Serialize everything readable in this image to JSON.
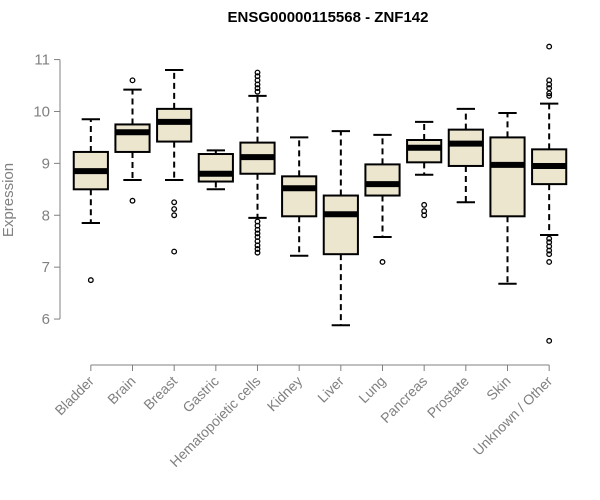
{
  "chart_data": {
    "type": "boxplot",
    "title": "ENSG00000115568 - ZNF142",
    "xlabel": "",
    "ylabel": "Expression",
    "ylim": [
      5.5,
      11.3
    ],
    "yticks": [
      6,
      7,
      8,
      9,
      10,
      11
    ],
    "colors": {
      "box_fill": "#ede6cf",
      "stroke": "#000000",
      "axis": "#808080",
      "text": "#808080"
    },
    "categories": [
      "Bladder",
      "Brain",
      "Breast",
      "Gastric",
      "Hematopoietic cells",
      "Kidney",
      "Liver",
      "Lung",
      "Pancreas",
      "Prostate",
      "Skin",
      "Unknown / Other"
    ],
    "series": [
      {
        "name": "Bladder",
        "whisker_low": 7.85,
        "q1": 8.5,
        "median": 8.85,
        "q3": 9.22,
        "whisker_high": 9.85,
        "outliers": [
          6.75
        ]
      },
      {
        "name": "Brain",
        "whisker_low": 8.68,
        "q1": 9.22,
        "median": 9.6,
        "q3": 9.75,
        "whisker_high": 10.42,
        "outliers": [
          8.28,
          10.6
        ]
      },
      {
        "name": "Breast",
        "whisker_low": 8.68,
        "q1": 9.42,
        "median": 9.8,
        "q3": 10.05,
        "whisker_high": 10.8,
        "outliers": [
          8.25,
          8.12,
          8.0,
          7.3
        ]
      },
      {
        "name": "Gastric",
        "whisker_low": 8.5,
        "q1": 8.65,
        "median": 8.8,
        "q3": 9.18,
        "whisker_high": 9.25,
        "outliers": []
      },
      {
        "name": "Hematopoietic cells",
        "whisker_low": 7.95,
        "q1": 8.8,
        "median": 9.12,
        "q3": 9.4,
        "whisker_high": 10.3,
        "outliers": [
          10.38,
          10.45,
          10.52,
          10.6,
          10.68,
          10.75,
          7.88,
          7.8,
          7.72,
          7.65,
          7.58,
          7.5,
          7.42,
          7.35,
          7.28
        ]
      },
      {
        "name": "Kidney",
        "whisker_low": 7.22,
        "q1": 7.98,
        "median": 8.52,
        "q3": 8.75,
        "whisker_high": 9.5,
        "outliers": []
      },
      {
        "name": "Liver",
        "whisker_low": 5.88,
        "q1": 7.25,
        "median": 8.02,
        "q3": 8.38,
        "whisker_high": 9.62,
        "outliers": []
      },
      {
        "name": "Lung",
        "whisker_low": 7.58,
        "q1": 8.38,
        "median": 8.6,
        "q3": 8.98,
        "whisker_high": 9.55,
        "outliers": [
          7.1
        ]
      },
      {
        "name": "Pancreas",
        "whisker_low": 8.78,
        "q1": 9.02,
        "median": 9.3,
        "q3": 9.45,
        "whisker_high": 9.8,
        "outliers": [
          8.2,
          8.08,
          8.0
        ]
      },
      {
        "name": "Prostate",
        "whisker_low": 8.25,
        "q1": 8.95,
        "median": 9.38,
        "q3": 9.65,
        "whisker_high": 10.05,
        "outliers": []
      },
      {
        "name": "Skin",
        "whisker_low": 6.68,
        "q1": 7.98,
        "median": 8.97,
        "q3": 9.5,
        "whisker_high": 9.97,
        "outliers": []
      },
      {
        "name": "Unknown / Other",
        "whisker_low": 7.62,
        "q1": 8.6,
        "median": 8.95,
        "q3": 9.27,
        "whisker_high": 10.15,
        "outliers": [
          11.25,
          10.6,
          10.52,
          10.45,
          10.35,
          10.3,
          7.55,
          7.48,
          7.4,
          7.32,
          7.25,
          7.1,
          5.58
        ]
      }
    ]
  }
}
